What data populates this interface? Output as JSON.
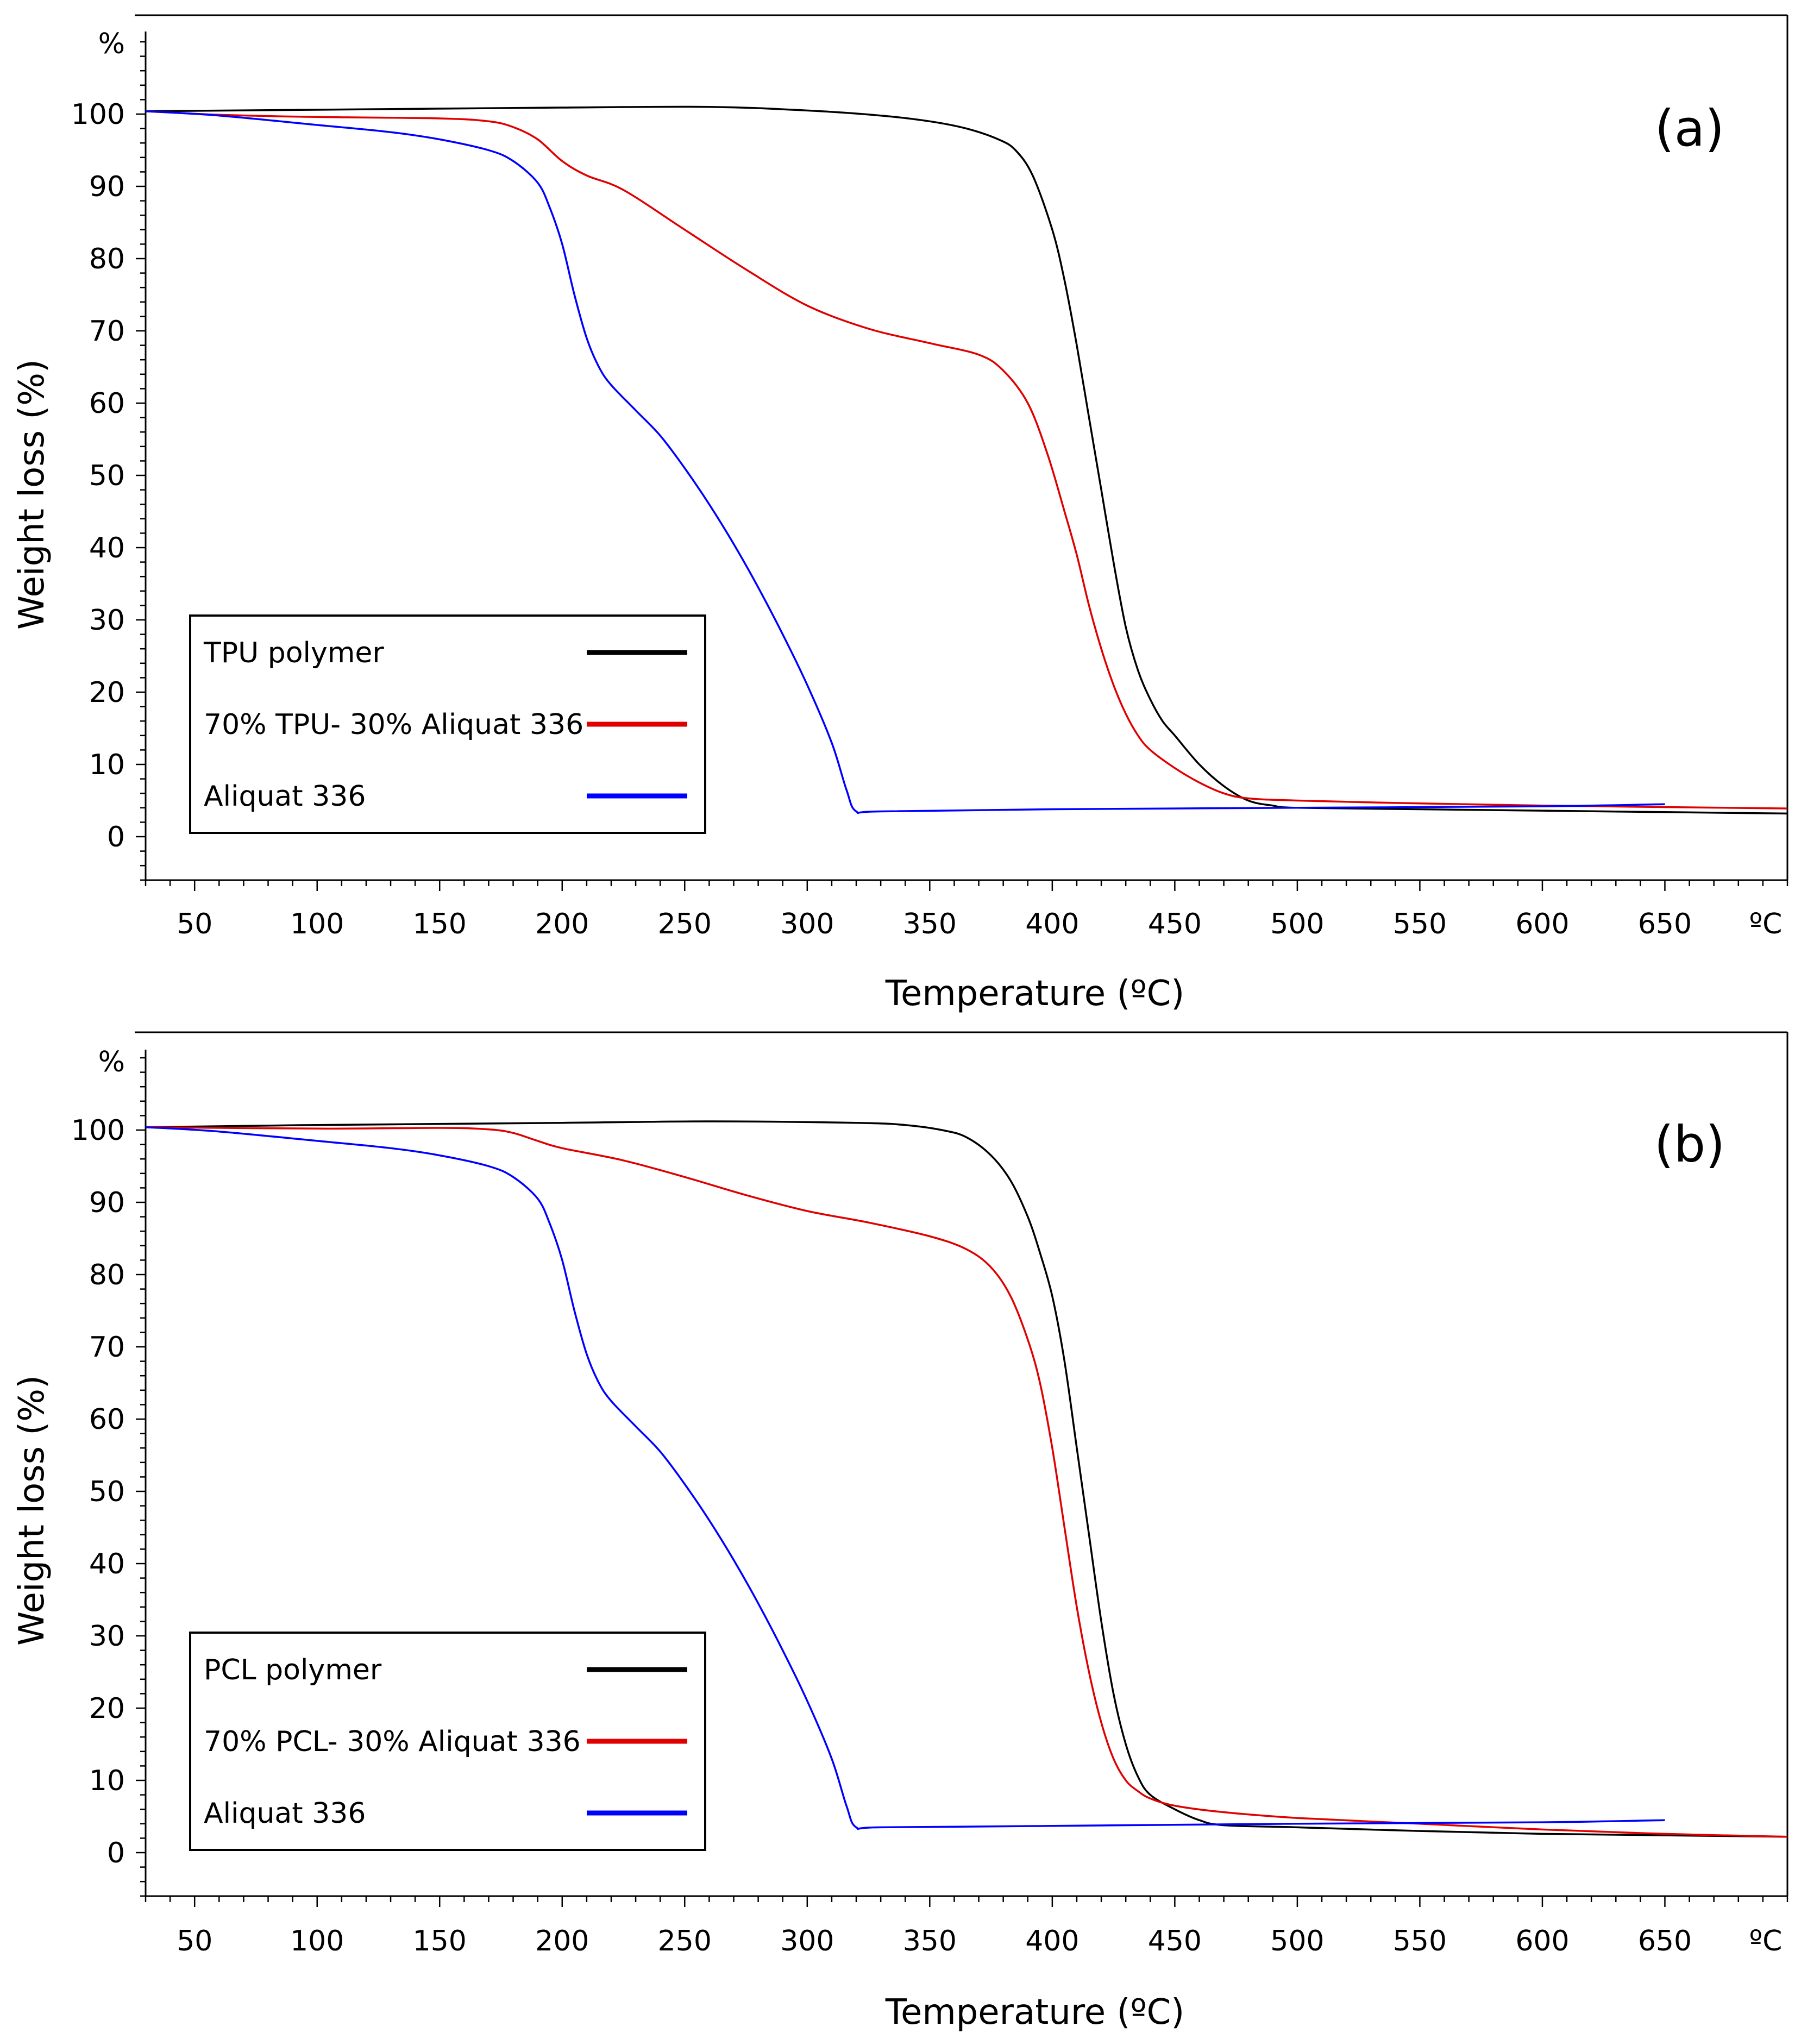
{
  "chart_data": [
    {
      "type": "line",
      "panel_label": "(a)",
      "xlabel": "Temperature (ºC)",
      "ylabel": "Weight loss (%)",
      "x_unit": "ºC",
      "y_unit": "%",
      "xlim": [
        30,
        700
      ],
      "ylim": [
        -6,
        110
      ],
      "xticks": [
        50,
        100,
        150,
        200,
        250,
        300,
        350,
        400,
        450,
        500,
        550,
        600,
        650
      ],
      "yticks": [
        0,
        10,
        20,
        30,
        40,
        50,
        60,
        70,
        80,
        90,
        100
      ],
      "legend": {
        "position": "bottom-left"
      },
      "series": [
        {
          "name": "TPU polymer",
          "color": "#000000",
          "points": [
            [
              30,
              100.4
            ],
            [
              100,
              100.6
            ],
            [
              200,
              100.9
            ],
            [
              260,
              101.0
            ],
            [
              300,
              100.5
            ],
            [
              330,
              99.8
            ],
            [
              350,
              99.0
            ],
            [
              365,
              98.0
            ],
            [
              378,
              96.5
            ],
            [
              385,
              95.0
            ],
            [
              392,
              91.5
            ],
            [
              400,
              84
            ],
            [
              405,
              77
            ],
            [
              410,
              68
            ],
            [
              415,
              58
            ],
            [
              420,
              48
            ],
            [
              425,
              38
            ],
            [
              430,
              29
            ],
            [
              435,
              23
            ],
            [
              440,
              19
            ],
            [
              445,
              16
            ],
            [
              450,
              14
            ],
            [
              460,
              10
            ],
            [
              470,
              7
            ],
            [
              480,
              5
            ],
            [
              490,
              4.3
            ],
            [
              500,
              4.0
            ],
            [
              550,
              3.8
            ],
            [
              600,
              3.6
            ],
            [
              650,
              3.4
            ],
            [
              700,
              3.2
            ]
          ]
        },
        {
          "name": "70% TPU- 30% Aliquat 336",
          "color": "#e00000",
          "points": [
            [
              30,
              100.4
            ],
            [
              60,
              99.9
            ],
            [
              100,
              99.6
            ],
            [
              150,
              99.4
            ],
            [
              170,
              99.0
            ],
            [
              180,
              98.2
            ],
            [
              190,
              96.5
            ],
            [
              200,
              93.5
            ],
            [
              210,
              91.5
            ],
            [
              225,
              89.5
            ],
            [
              250,
              84
            ],
            [
              275,
              78.5
            ],
            [
              300,
              73.5
            ],
            [
              325,
              70.3
            ],
            [
              350,
              68.3
            ],
            [
              370,
              66.7
            ],
            [
              380,
              64.5
            ],
            [
              390,
              60
            ],
            [
              398,
              53
            ],
            [
              405,
              45
            ],
            [
              410,
              39
            ],
            [
              415,
              32
            ],
            [
              420,
              26
            ],
            [
              425,
              21
            ],
            [
              430,
              17
            ],
            [
              435,
              14
            ],
            [
              440,
              12
            ],
            [
              450,
              9.5
            ],
            [
              460,
              7.5
            ],
            [
              470,
              6.0
            ],
            [
              480,
              5.3
            ],
            [
              500,
              5.0
            ],
            [
              550,
              4.6
            ],
            [
              600,
              4.3
            ],
            [
              650,
              4.1
            ],
            [
              700,
              3.9
            ]
          ]
        },
        {
          "name": "Aliquat 336",
          "color": "#0000ff",
          "points": [
            [
              30,
              100.4
            ],
            [
              60,
              99.8
            ],
            [
              100,
              98.5
            ],
            [
              130,
              97.5
            ],
            [
              150,
              96.5
            ],
            [
              170,
              95.0
            ],
            [
              180,
              93.5
            ],
            [
              190,
              90.5
            ],
            [
              195,
              87
            ],
            [
              200,
              82
            ],
            [
              205,
              75
            ],
            [
              210,
              69
            ],
            [
              215,
              65
            ],
            [
              220,
              62.5
            ],
            [
              230,
              59
            ],
            [
              240,
              55.5
            ],
            [
              250,
              51
            ],
            [
              260,
              46
            ],
            [
              270,
              40.5
            ],
            [
              280,
              34.5
            ],
            [
              290,
              28
            ],
            [
              300,
              21
            ],
            [
              310,
              13
            ],
            [
              316,
              6.5
            ],
            [
              320,
              3.5
            ],
            [
              330,
              3.5
            ],
            [
              400,
              3.8
            ],
            [
              500,
              4.0
            ],
            [
              600,
              4.2
            ],
            [
              650,
              4.5
            ]
          ]
        }
      ]
    },
    {
      "type": "line",
      "panel_label": "(b)",
      "xlabel": "Temperature (ºC)",
      "ylabel": "Weight loss (%)",
      "x_unit": "ºC",
      "y_unit": "%",
      "xlim": [
        30,
        700
      ],
      "ylim": [
        -6,
        110
      ],
      "xticks": [
        50,
        100,
        150,
        200,
        250,
        300,
        350,
        400,
        450,
        500,
        550,
        600,
        650
      ],
      "yticks": [
        0,
        10,
        20,
        30,
        40,
        50,
        60,
        70,
        80,
        90,
        100
      ],
      "legend": {
        "position": "bottom-left"
      },
      "series": [
        {
          "name": "PCL polymer",
          "color": "#000000",
          "points": [
            [
              30,
              100.4
            ],
            [
              100,
              100.7
            ],
            [
              200,
              101.0
            ],
            [
              260,
              101.2
            ],
            [
              320,
              101.0
            ],
            [
              340,
              100.7
            ],
            [
              355,
              100.0
            ],
            [
              365,
              99.0
            ],
            [
              375,
              96.5
            ],
            [
              383,
              93
            ],
            [
              390,
              88
            ],
            [
              395,
              83
            ],
            [
              400,
              77
            ],
            [
              405,
              68
            ],
            [
              410,
              56
            ],
            [
              415,
              44
            ],
            [
              420,
              32
            ],
            [
              425,
              22
            ],
            [
              430,
              15
            ],
            [
              435,
              10.5
            ],
            [
              440,
              8
            ],
            [
              450,
              6
            ],
            [
              460,
              4.5
            ],
            [
              470,
              3.8
            ],
            [
              500,
              3.5
            ],
            [
              550,
              3.0
            ],
            [
              600,
              2.6
            ],
            [
              650,
              2.4
            ],
            [
              700,
              2.2
            ]
          ]
        },
        {
          "name": "70% PCL- 30% Aliquat 336",
          "color": "#e00000",
          "points": [
            [
              30,
              100.4
            ],
            [
              100,
              100.2
            ],
            [
              150,
              100.3
            ],
            [
              170,
              100.1
            ],
            [
              180,
              99.6
            ],
            [
              190,
              98.5
            ],
            [
              200,
              97.5
            ],
            [
              225,
              95.8
            ],
            [
              250,
              93.5
            ],
            [
              275,
              91
            ],
            [
              300,
              88.8
            ],
            [
              325,
              87.2
            ],
            [
              350,
              85.3
            ],
            [
              365,
              83.5
            ],
            [
              375,
              81
            ],
            [
              383,
              77
            ],
            [
              390,
              71
            ],
            [
              395,
              65
            ],
            [
              400,
              56
            ],
            [
              405,
              45
            ],
            [
              410,
              34
            ],
            [
              415,
              25
            ],
            [
              420,
              18
            ],
            [
              425,
              13
            ],
            [
              430,
              10
            ],
            [
              435,
              8.5
            ],
            [
              440,
              7.5
            ],
            [
              450,
              6.5
            ],
            [
              470,
              5.6
            ],
            [
              500,
              4.8
            ],
            [
              550,
              4.0
            ],
            [
              600,
              3.2
            ],
            [
              650,
              2.6
            ],
            [
              700,
              2.2
            ]
          ]
        },
        {
          "name": "Aliquat 336",
          "color": "#0000ff",
          "points": [
            [
              30,
              100.4
            ],
            [
              60,
              99.8
            ],
            [
              100,
              98.5
            ],
            [
              130,
              97.5
            ],
            [
              150,
              96.5
            ],
            [
              170,
              95.0
            ],
            [
              180,
              93.5
            ],
            [
              190,
              90.5
            ],
            [
              195,
              87
            ],
            [
              200,
              82
            ],
            [
              205,
              75
            ],
            [
              210,
              69
            ],
            [
              215,
              65
            ],
            [
              220,
              62.5
            ],
            [
              230,
              59
            ],
            [
              240,
              55.5
            ],
            [
              250,
              51
            ],
            [
              260,
              46
            ],
            [
              270,
              40.5
            ],
            [
              280,
              34.5
            ],
            [
              290,
              28
            ],
            [
              300,
              21
            ],
            [
              310,
              13
            ],
            [
              316,
              6.5
            ],
            [
              320,
              3.5
            ],
            [
              330,
              3.5
            ],
            [
              400,
              3.7
            ],
            [
              500,
              4.0
            ],
            [
              600,
              4.2
            ],
            [
              650,
              4.5
            ]
          ]
        }
      ]
    }
  ]
}
